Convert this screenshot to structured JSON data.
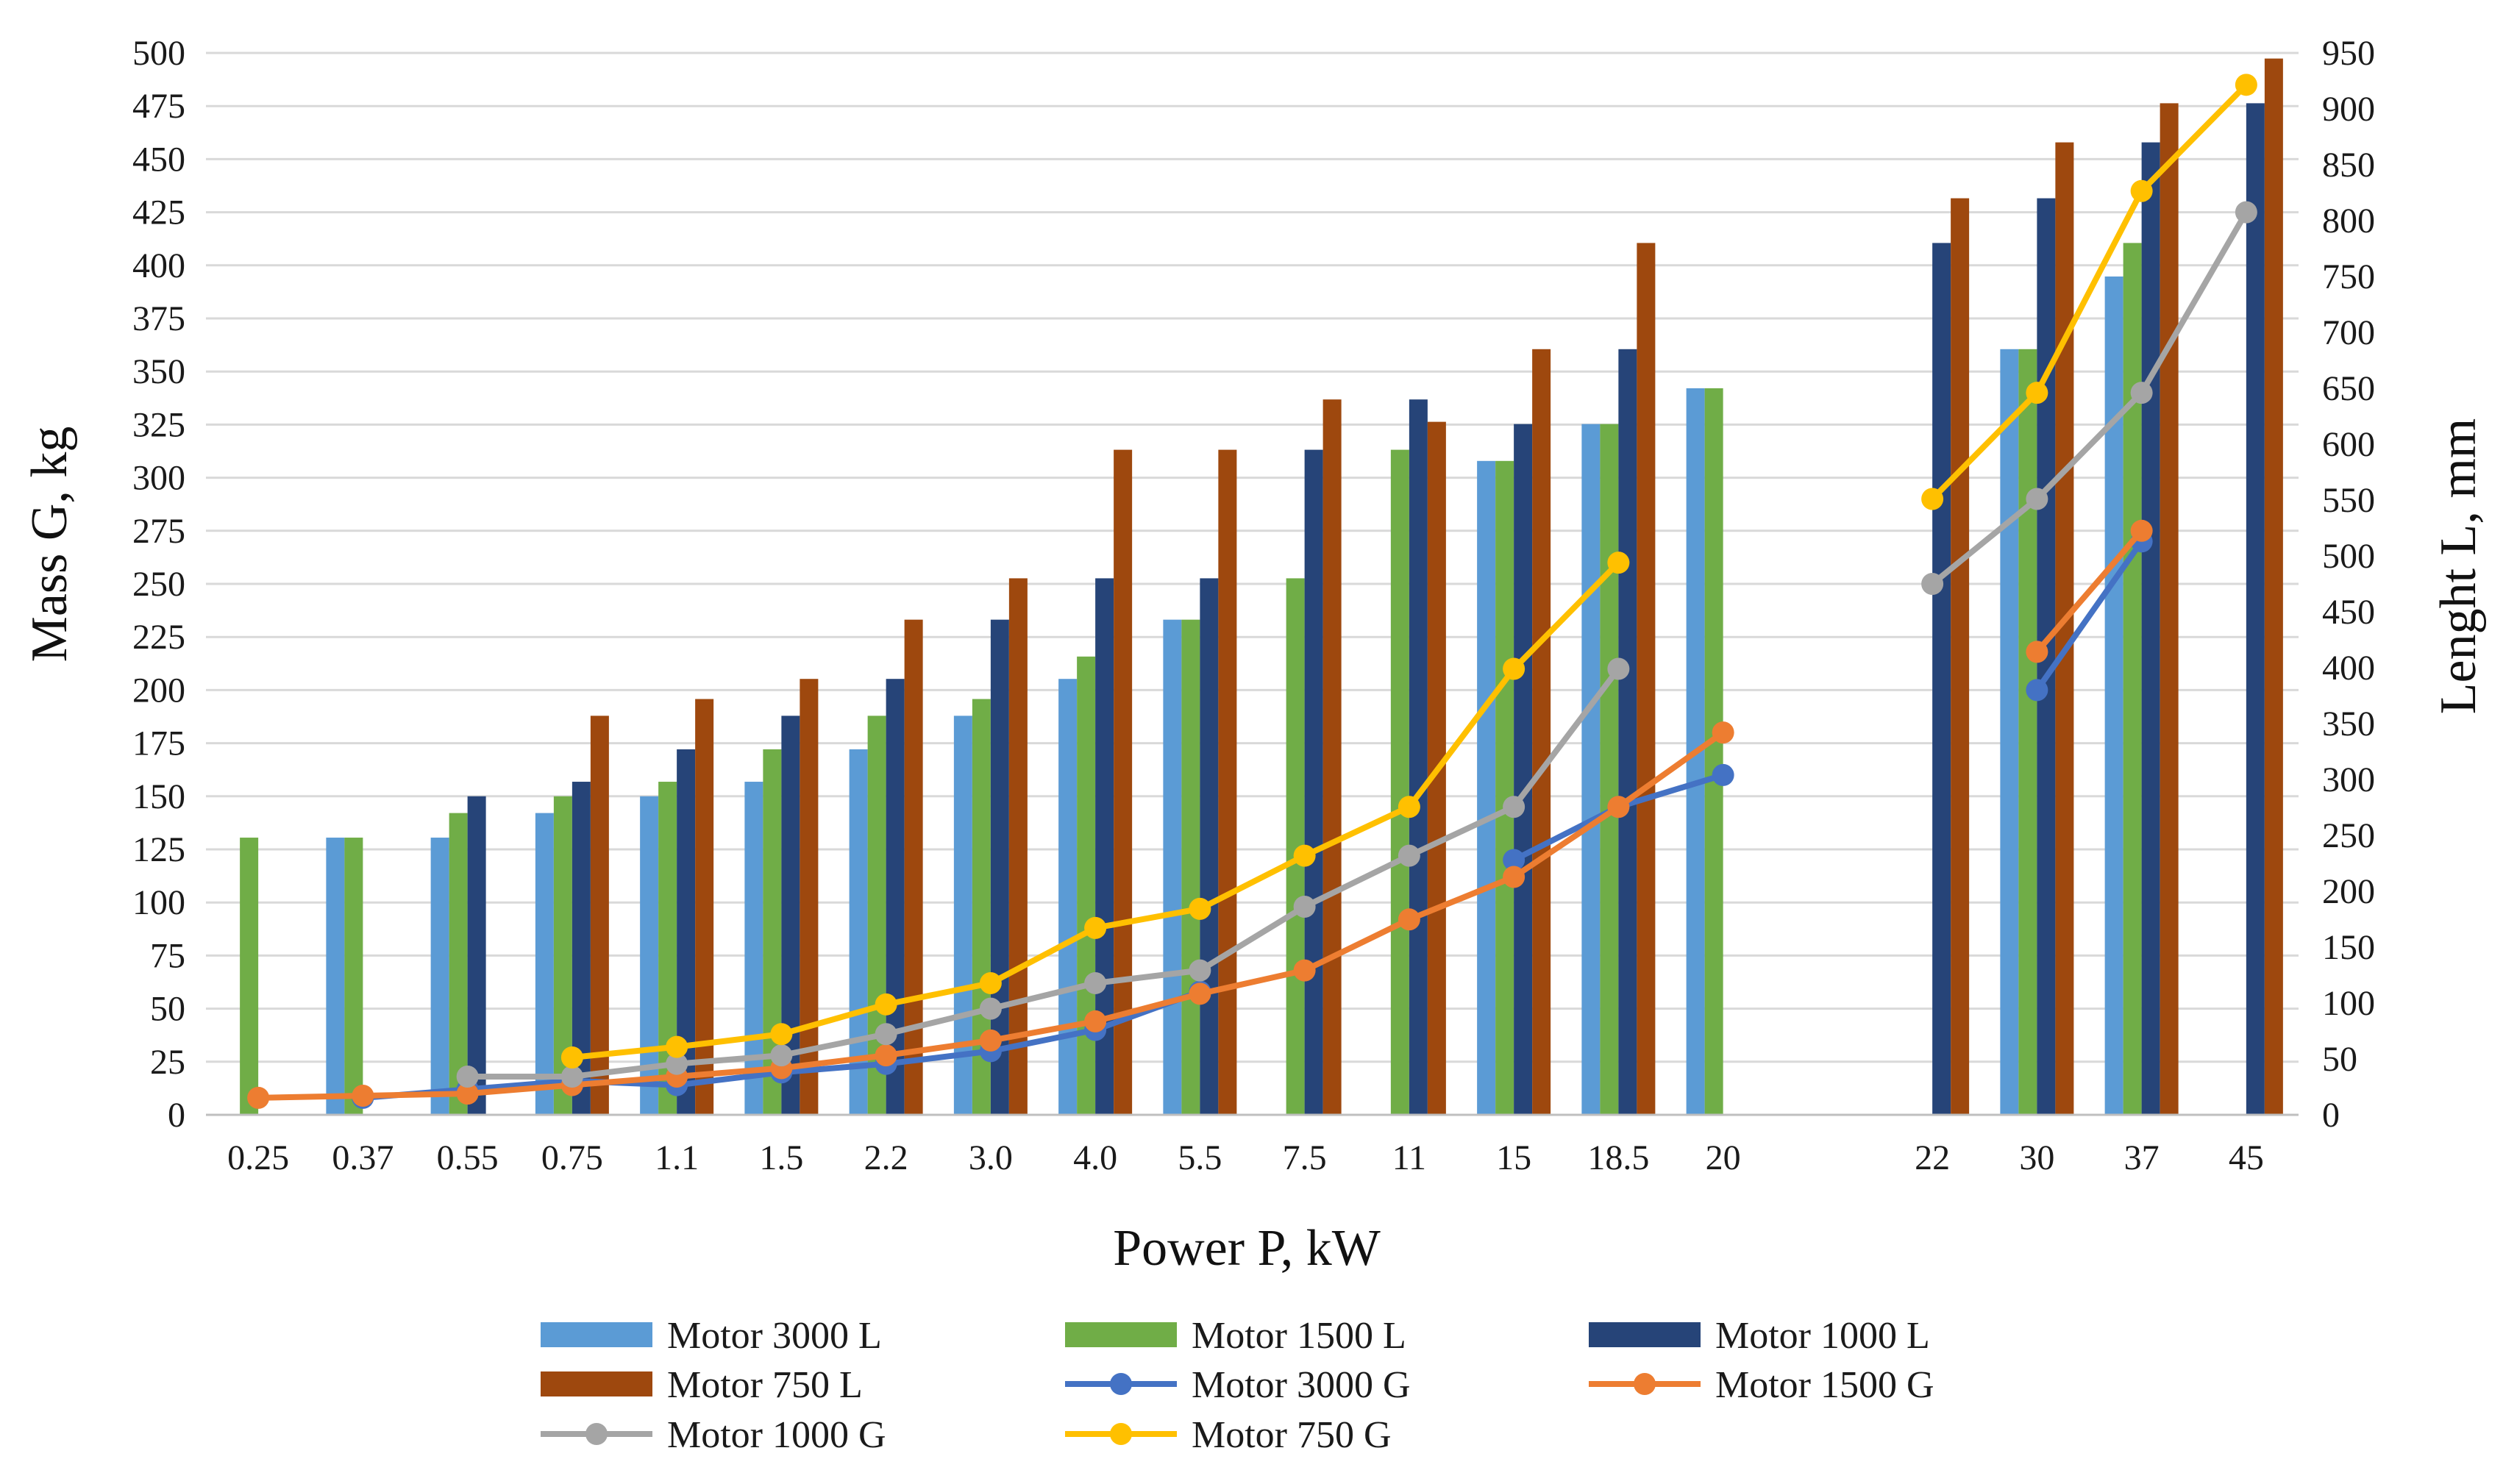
{
  "chart_data": {
    "type": "bar+line",
    "xlabel": "Power P, kW",
    "ylabel_left": "Mass G, kg",
    "ylabel_right": "Lenght L, mm",
    "ylim_left": [
      0,
      500
    ],
    "ylim_right": [
      0,
      950
    ],
    "yticks_left": [
      "0",
      "25",
      "50",
      "75",
      "100",
      "125",
      "150",
      "175",
      "200",
      "225",
      "250",
      "275",
      "300",
      "325",
      "350",
      "375",
      "400",
      "425",
      "450",
      "475",
      "500"
    ],
    "yticks_right": [
      "0",
      "50",
      "100",
      "150",
      "200",
      "250",
      "300",
      "350",
      "400",
      "450",
      "500",
      "550",
      "600",
      "650",
      "700",
      "750",
      "800",
      "850",
      "900",
      "950"
    ],
    "grid": true,
    "legend_position": "bottom",
    "categories": [
      "0.25",
      "0.37",
      "0.55",
      "0.75",
      "1.1",
      "1.5",
      "2.2",
      "3.0",
      "4.0",
      "5.5",
      "7.5",
      "11",
      "15",
      "18.5",
      "20",
      "",
      "22",
      "30",
      "37",
      "45"
    ],
    "bar_series": [
      {
        "name": "Motor 3000 L",
        "color": "#5B9BD5",
        "axis": "right",
        "values": [
          null,
          248,
          248,
          270,
          285,
          298,
          327,
          357,
          390,
          443,
          null,
          null,
          585,
          618,
          650,
          null,
          null,
          685,
          750,
          null
        ]
      },
      {
        "name": "Motor 1500 L",
        "color": "#70AD47",
        "axis": "right",
        "values": [
          248,
          248,
          270,
          285,
          298,
          327,
          357,
          372,
          410,
          443,
          480,
          595,
          585,
          618,
          650,
          null,
          null,
          685,
          780,
          null
        ]
      },
      {
        "name": "Motor 1000 L",
        "color": "#264478",
        "axis": "right",
        "values": [
          null,
          null,
          285,
          298,
          327,
          357,
          390,
          443,
          480,
          480,
          595,
          640,
          618,
          685,
          null,
          null,
          780,
          820,
          870,
          905
        ]
      },
      {
        "name": "Motor 750 L",
        "color": "#9E480E",
        "axis": "right",
        "values": [
          null,
          null,
          null,
          357,
          372,
          390,
          443,
          480,
          595,
          595,
          640,
          620,
          685,
          780,
          null,
          null,
          820,
          870,
          905,
          945
        ]
      }
    ],
    "line_series": [
      {
        "name": "Motor 3000 G",
        "color": "#4472C4",
        "axis": "left",
        "values": [
          null,
          8,
          12,
          16,
          14,
          20,
          24,
          30,
          40,
          58,
          null,
          null,
          120,
          145,
          160,
          null,
          null,
          200,
          270,
          null
        ]
      },
      {
        "name": "Motor 1500 G",
        "color": "#ED7D31",
        "axis": "left",
        "values": [
          8,
          9,
          10,
          14,
          18,
          22,
          28,
          35,
          44,
          57,
          68,
          92,
          112,
          145,
          180,
          null,
          null,
          218,
          275,
          null
        ]
      },
      {
        "name": "Motor 1000 G",
        "color": "#A5A5A5",
        "axis": "left",
        "values": [
          null,
          null,
          18,
          18,
          24,
          28,
          38,
          50,
          62,
          68,
          98,
          122,
          145,
          210,
          null,
          null,
          250,
          290,
          340,
          425
        ]
      },
      {
        "name": "Motor 750 G",
        "color": "#FFC000",
        "axis": "left",
        "values": [
          null,
          null,
          null,
          27,
          32,
          38,
          52,
          62,
          88,
          97,
          122,
          145,
          210,
          260,
          null,
          null,
          290,
          340,
          435,
          485
        ]
      }
    ],
    "legend": [
      {
        "label": "Motor 3000 L",
        "kind": "bar",
        "color": "#5B9BD5"
      },
      {
        "label": "Motor 1500 L",
        "kind": "bar",
        "color": "#70AD47"
      },
      {
        "label": "Motor 1000 L",
        "kind": "bar",
        "color": "#264478"
      },
      {
        "label": "Motor 750 L",
        "kind": "bar",
        "color": "#9E480E"
      },
      {
        "label": "Motor 3000 G",
        "kind": "line",
        "color": "#4472C4"
      },
      {
        "label": "Motor 1500 G",
        "kind": "line",
        "color": "#ED7D31"
      },
      {
        "label": "Motor 1000 G",
        "kind": "line",
        "color": "#A5A5A5"
      },
      {
        "label": "Motor 750 G",
        "kind": "line",
        "color": "#FFC000"
      }
    ]
  }
}
